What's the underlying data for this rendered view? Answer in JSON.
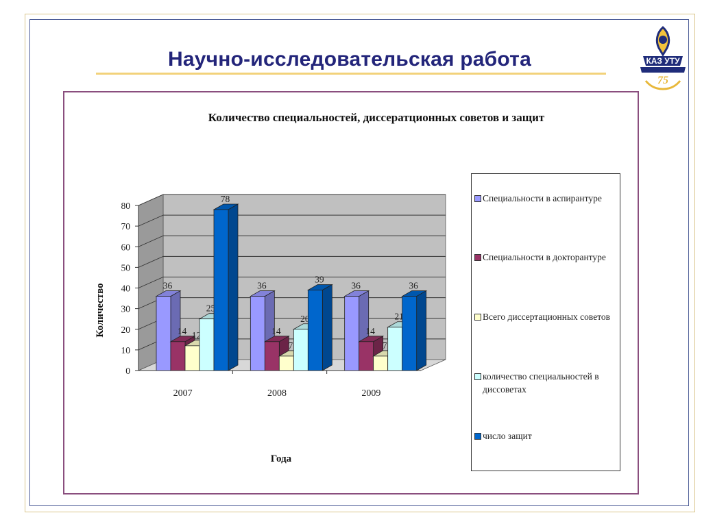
{
  "slide": {
    "title": "Научно-исследовательская работа",
    "logo_text": "КАЗ УТУ",
    "logo_number": "75"
  },
  "chart_data": {
    "type": "bar",
    "title": "Количество специальностей, диссератционных советов и защит",
    "xlabel": "Года",
    "ylabel": "Количество",
    "categories": [
      "2007",
      "2008",
      "2009"
    ],
    "ylim": [
      0,
      80
    ],
    "yticks": [
      "0",
      "10",
      "20",
      "30",
      "40",
      "50",
      "60",
      "70",
      "80"
    ],
    "grid": true,
    "legend_position": "right",
    "series": [
      {
        "name": "Специальности в аспирантуре",
        "values": [
          36,
          36,
          36
        ],
        "color": "#9999ff"
      },
      {
        "name": "Специальности в докторантуре",
        "values": [
          14,
          14,
          14
        ],
        "color": "#993366"
      },
      {
        "name": "Всего диссертационных советов",
        "values": [
          12,
          7,
          7
        ],
        "color": "#ffffcc"
      },
      {
        "name": "количество специальностей в диссоветах",
        "values": [
          25,
          20,
          21
        ],
        "color": "#ccffff"
      },
      {
        "name": "число защит",
        "values": [
          78,
          39,
          36
        ],
        "color": "#0066cc"
      }
    ]
  }
}
